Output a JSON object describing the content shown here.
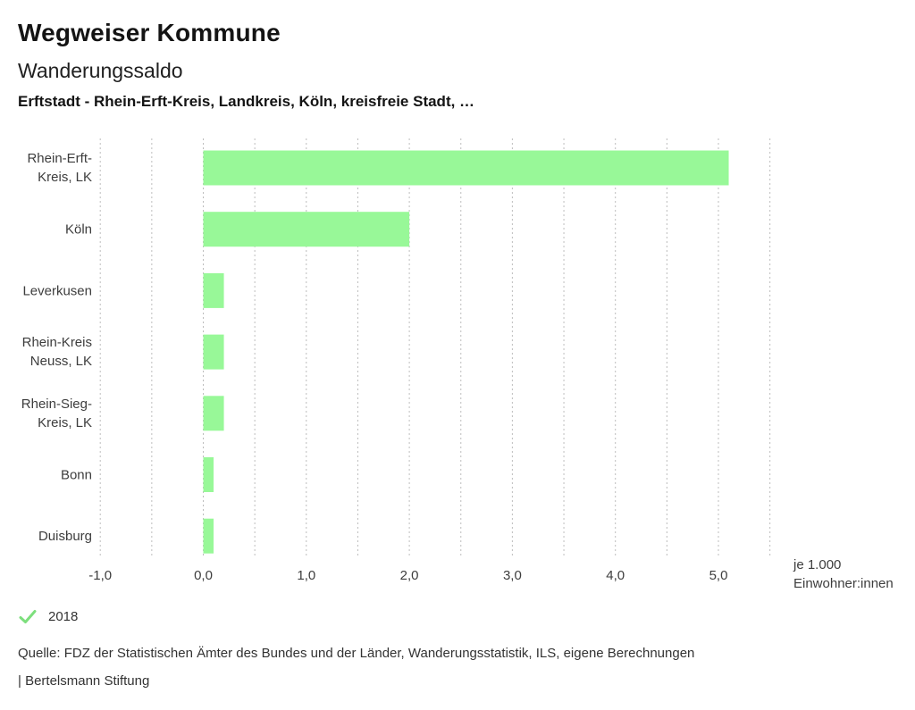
{
  "header": {
    "title": "Wegweiser Kommune",
    "subtitle": "Wanderungssaldo",
    "context": "Erftstadt - Rhein-Erft-Kreis, Landkreis, Köln, kreisfreie Stadt, …"
  },
  "chart_data": {
    "type": "bar",
    "orientation": "horizontal",
    "title": "Wanderungssaldo",
    "unit_label_lines": [
      "je 1.000",
      "Einwohner:innen"
    ],
    "categories": [
      "Rhein-Erft-Kreis, LK",
      "Köln",
      "Leverkusen",
      "Rhein-Kreis Neuss, LK",
      "Rhein-Sieg-Kreis, LK",
      "Bonn",
      "Duisburg"
    ],
    "category_label_lines": [
      [
        "Rhein-Erft-",
        "Kreis, LK"
      ],
      [
        "Köln"
      ],
      [
        "Leverkusen"
      ],
      [
        "Rhein-Kreis",
        "Neuss, LK"
      ],
      [
        "Rhein-Sieg-",
        "Kreis, LK"
      ],
      [
        "Bonn"
      ],
      [
        "Duisburg"
      ]
    ],
    "series": [
      {
        "name": "2018",
        "values": [
          5.1,
          2.0,
          0.2,
          0.2,
          0.2,
          0.1,
          0.1
        ]
      }
    ],
    "xlim": [
      -1.0,
      5.5
    ],
    "grid_step": 0.5,
    "grid": "dotted-vertical",
    "x_ticks": [
      {
        "value": -1.0,
        "label": "-1,0"
      },
      {
        "value": 0.0,
        "label": "0,0"
      },
      {
        "value": 1.0,
        "label": "1,0"
      },
      {
        "value": 2.0,
        "label": "2,0"
      },
      {
        "value": 3.0,
        "label": "3,0"
      },
      {
        "value": 4.0,
        "label": "4,0"
      },
      {
        "value": 5.0,
        "label": "5,0"
      }
    ],
    "legend_position": "bottom-left",
    "colors": {
      "bar": "#98f898",
      "check": "#7ddf7d",
      "grid": "#bdbdbd",
      "axis_text": "#3d3d3d"
    },
    "legend": {
      "items": [
        {
          "label": "2018",
          "checked": true
        }
      ]
    }
  },
  "footer": {
    "source": "Quelle: FDZ der Statistischen Ämter des Bundes und der Länder, Wanderungsstatistik, ILS, eigene Berechnungen",
    "branding": "| Bertelsmann Stiftung"
  }
}
